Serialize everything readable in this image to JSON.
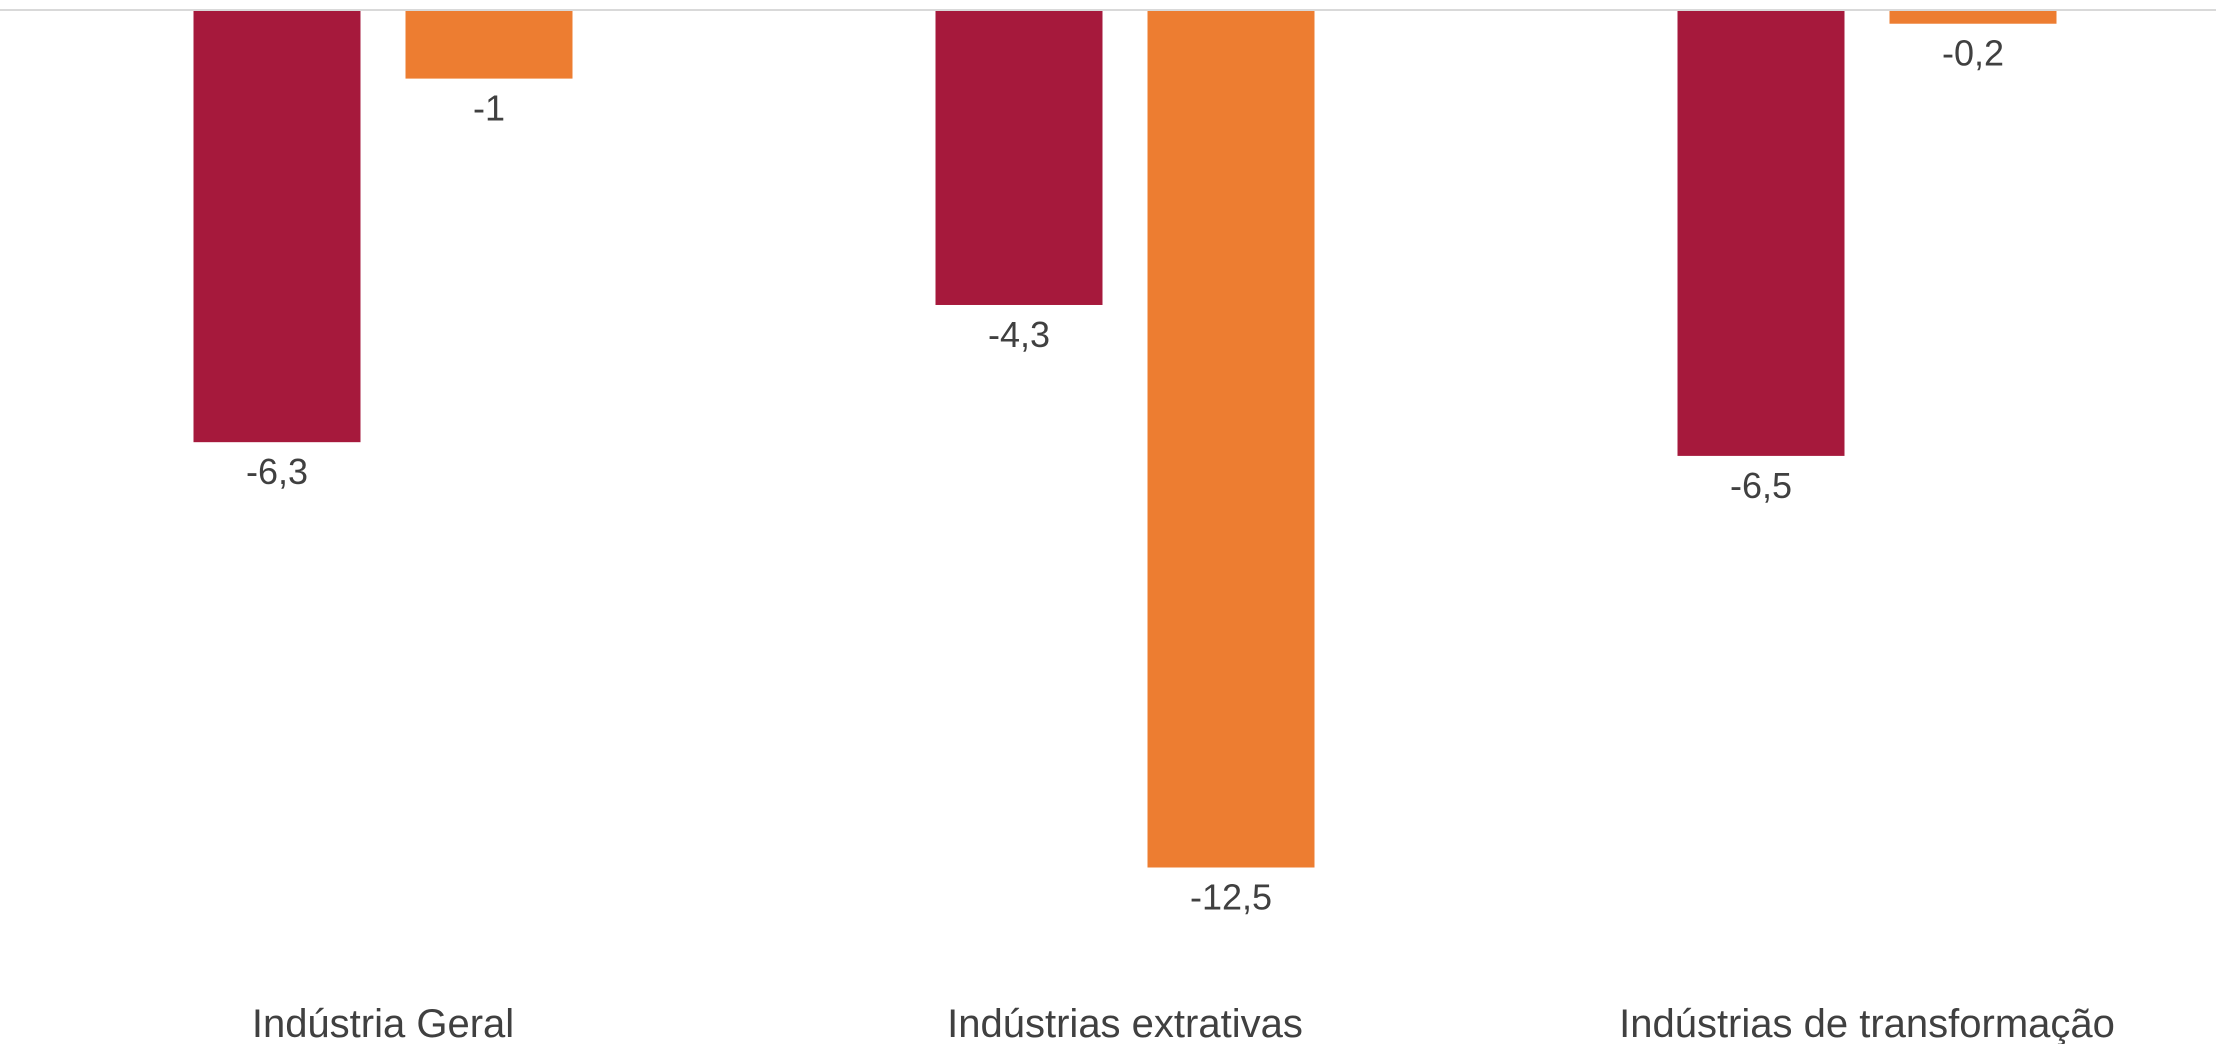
{
  "chart_data": {
    "type": "bar",
    "categories": [
      "Indústria Geral",
      "Indústrias extrativas",
      "Indústrias de transformação"
    ],
    "series": [
      {
        "color": "#A6193C",
        "values": [
          -6.3,
          -4.3,
          -6.5
        ],
        "labels": [
          "-6,3",
          "-4,3",
          "-6,5"
        ]
      },
      {
        "color": "#ED7D31",
        "values": [
          -1,
          -12.5,
          -0.2
        ],
        "labels": [
          "-1",
          "-12,5",
          "-0,2"
        ]
      }
    ],
    "ylim": [
      -12.5,
      0
    ],
    "grid": false,
    "legend": "none",
    "axis_color": "#D9D9D9"
  }
}
